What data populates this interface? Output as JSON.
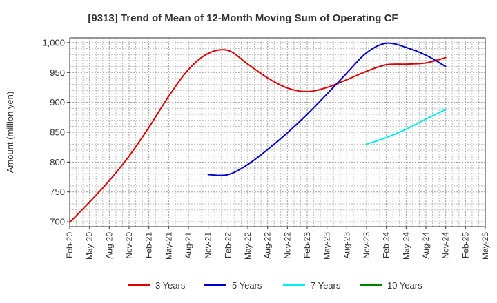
{
  "chart_data": {
    "type": "line",
    "title": "[9313]  Trend of Mean of 12-Month Moving Sum of Operating CF",
    "xlabel": "",
    "ylabel": "Amount (million yen)",
    "ylim": [
      692,
      1008
    ],
    "yticks": [
      700,
      750,
      800,
      850,
      900,
      950,
      1000
    ],
    "ytick_labels": [
      "700",
      "750",
      "800",
      "850",
      "900",
      "950",
      "1,000"
    ],
    "grid": true,
    "legend_position": "bottom",
    "categories": [
      "Feb-20",
      "May-20",
      "Aug-20",
      "Nov-20",
      "Feb-21",
      "May-21",
      "Aug-21",
      "Nov-21",
      "Feb-22",
      "May-22",
      "Aug-22",
      "Nov-22",
      "Feb-23",
      "May-23",
      "Aug-23",
      "Nov-23",
      "Feb-24",
      "May-24",
      "Aug-24",
      "Nov-24",
      "Feb-25",
      "May-25"
    ],
    "series": [
      {
        "name": "3 Years",
        "color": "#e00000",
        "values": [
          699,
          733,
          769,
          810,
          858,
          910,
          955,
          982,
          987,
          964,
          941,
          924,
          918,
          925,
          938,
          952,
          963,
          964,
          966,
          975,
          null,
          null
        ]
      },
      {
        "name": "5 Years",
        "color": "#0000cc",
        "values": [
          null,
          null,
          null,
          null,
          null,
          null,
          null,
          779,
          779,
          796,
          821,
          849,
          880,
          914,
          949,
          983,
          999,
          992,
          979,
          960,
          null,
          null
        ]
      },
      {
        "name": "7 Years",
        "color": "#00eeee",
        "values": [
          null,
          null,
          null,
          null,
          null,
          null,
          null,
          null,
          null,
          null,
          null,
          null,
          null,
          null,
          null,
          830,
          841,
          855,
          872,
          888,
          null,
          null
        ]
      },
      {
        "name": "10 Years",
        "color": "#008000",
        "values": [
          null,
          null,
          null,
          null,
          null,
          null,
          null,
          null,
          null,
          null,
          null,
          null,
          null,
          null,
          null,
          null,
          null,
          null,
          null,
          null,
          null,
          null
        ]
      }
    ]
  }
}
